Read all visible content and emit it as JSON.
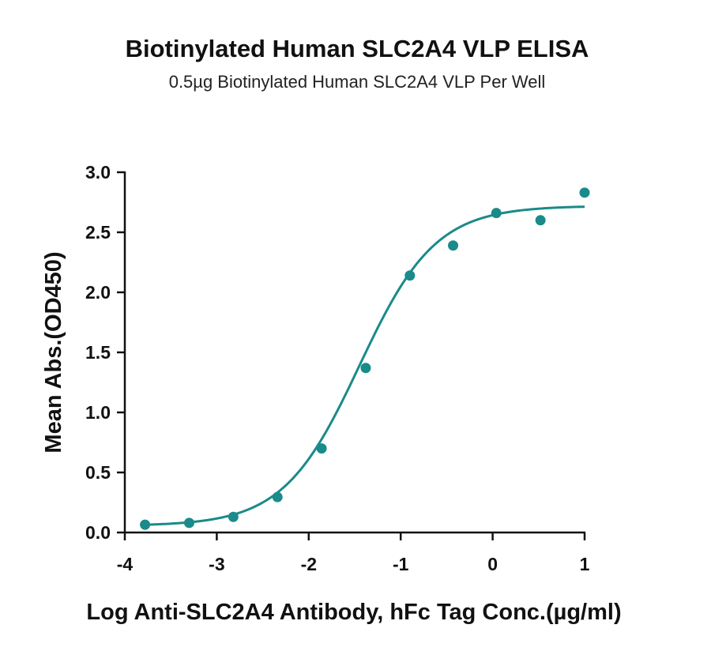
{
  "chart_data": {
    "type": "scatter",
    "title": "Biotinylated Human SLC2A4 VLP ELISA",
    "subtitle": "0.5µg Biotinylated Human SLC2A4 VLP Per Well",
    "xlabel": "Log Anti-SLC2A4 Antibody, hFc Tag Conc.(µg/ml)",
    "ylabel": "Mean Abs.(OD450)",
    "xlim": [
      -4,
      1
    ],
    "ylim": [
      0,
      3
    ],
    "x_ticks": [
      "-4",
      "-3",
      "-2",
      "-1",
      "0",
      "1"
    ],
    "y_ticks": [
      "0.0",
      "0.5",
      "1.0",
      "1.5",
      "2.0",
      "2.5",
      "3.0"
    ],
    "series": [
      {
        "color": "#1a8a8a",
        "x": [
          -3.78,
          -3.3,
          -2.82,
          -2.34,
          -1.86,
          -1.38,
          -0.9,
          -0.43,
          0.04,
          0.52,
          1.0
        ],
        "y": [
          0.065,
          0.08,
          0.13,
          0.295,
          0.7,
          1.37,
          2.14,
          2.39,
          2.66,
          2.6,
          2.83
        ]
      }
    ],
    "fit_curve": {
      "type": "4PL",
      "color": "#1a8a8a"
    },
    "grid": false,
    "legend": "none"
  }
}
